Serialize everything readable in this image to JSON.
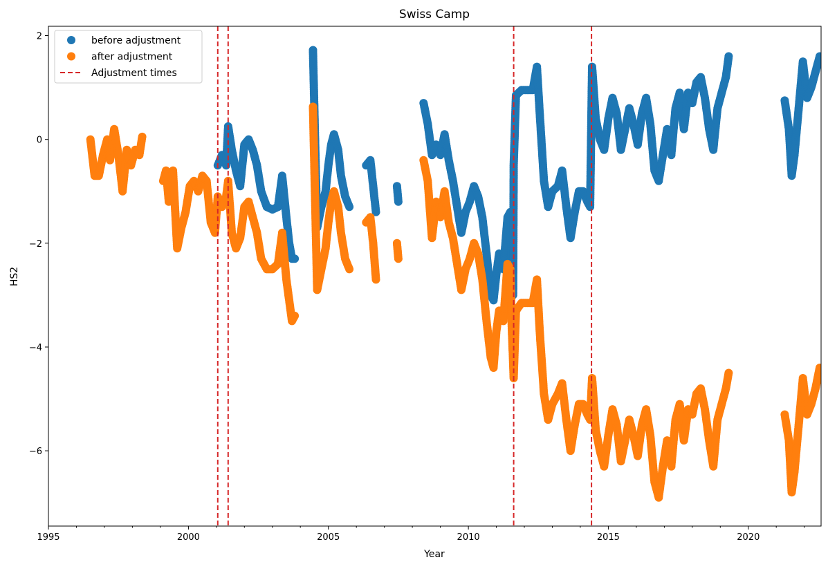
{
  "chart_data": {
    "type": "scatter",
    "title": "Swiss Camp",
    "xlabel": "Year",
    "ylabel": "HS2",
    "xlim": [
      1995.0,
      2022.6
    ],
    "ylim": [
      -7.45,
      2.18
    ],
    "xticks": [
      1995,
      2000,
      2005,
      2010,
      2015,
      2020
    ],
    "xtick_labels": [
      "1995",
      "2000",
      "2005",
      "2010",
      "2015",
      "2020"
    ],
    "yticks": [
      -6,
      -4,
      -2,
      0,
      2
    ],
    "ytick_labels": [
      "−6",
      "−4",
      "−2",
      "0",
      "2"
    ],
    "grid": false,
    "legend_position": "upper left",
    "series": [
      {
        "name": "before adjustment",
        "color": "#1f77b4",
        "points": [
          [
            2001.05,
            -0.5
          ],
          [
            2001.2,
            -0.3
          ],
          [
            2001.35,
            -0.5
          ],
          [
            2001.42,
            0.25
          ],
          [
            2001.55,
            -0.2
          ],
          [
            2001.7,
            -0.6
          ],
          [
            2001.85,
            -0.9
          ],
          [
            2002.0,
            -0.1
          ],
          [
            2002.15,
            0.0
          ],
          [
            2002.3,
            -0.2
          ],
          [
            2002.45,
            -0.5
          ],
          [
            2002.6,
            -1.0
          ],
          [
            2002.8,
            -1.3
          ],
          [
            2003.0,
            -1.35
          ],
          [
            2003.2,
            -1.3
          ],
          [
            2003.35,
            -0.7
          ],
          [
            2003.5,
            -1.5
          ],
          [
            2003.6,
            -2.0
          ],
          [
            2003.7,
            -2.3
          ],
          [
            2003.8,
            -2.3
          ],
          [
            2004.45,
            1.72
          ],
          [
            2004.6,
            -1.7
          ],
          [
            2004.75,
            -1.3
          ],
          [
            2004.9,
            -1.0
          ],
          [
            2005.0,
            -0.5
          ],
          [
            2005.1,
            -0.1
          ],
          [
            2005.2,
            0.1
          ],
          [
            2005.35,
            -0.2
          ],
          [
            2005.45,
            -0.7
          ],
          [
            2005.6,
            -1.1
          ],
          [
            2005.75,
            -1.3
          ],
          [
            2006.35,
            -0.5
          ],
          [
            2006.5,
            -0.4
          ],
          [
            2006.6,
            -0.9
          ],
          [
            2006.7,
            -1.4
          ],
          [
            2007.45,
            -0.9
          ],
          [
            2007.5,
            -1.2
          ],
          [
            2008.4,
            0.7
          ],
          [
            2008.55,
            0.3
          ],
          [
            2008.7,
            -0.3
          ],
          [
            2008.85,
            -0.1
          ],
          [
            2009.0,
            -0.3
          ],
          [
            2009.15,
            0.1
          ],
          [
            2009.3,
            -0.4
          ],
          [
            2009.45,
            -0.8
          ],
          [
            2009.6,
            -1.3
          ],
          [
            2009.75,
            -1.8
          ],
          [
            2009.9,
            -1.4
          ],
          [
            2010.05,
            -1.2
          ],
          [
            2010.2,
            -0.9
          ],
          [
            2010.35,
            -1.1
          ],
          [
            2010.5,
            -1.5
          ],
          [
            2010.65,
            -2.2
          ],
          [
            2010.8,
            -3.0
          ],
          [
            2010.9,
            -3.1
          ],
          [
            2011.0,
            -2.6
          ],
          [
            2011.1,
            -2.2
          ],
          [
            2011.25,
            -2.5
          ],
          [
            2011.4,
            -1.5
          ],
          [
            2011.5,
            -1.4
          ],
          [
            2011.55,
            -2.5
          ],
          [
            2011.6,
            -3.0
          ],
          [
            2011.62,
            -0.5
          ],
          [
            2011.7,
            0.85
          ],
          [
            2011.9,
            0.95
          ],
          [
            2012.1,
            0.95
          ],
          [
            2012.3,
            0.95
          ],
          [
            2012.45,
            1.4
          ],
          [
            2012.55,
            0.5
          ],
          [
            2012.7,
            -0.8
          ],
          [
            2012.85,
            -1.3
          ],
          [
            2013.0,
            -1.0
          ],
          [
            2013.2,
            -0.9
          ],
          [
            2013.35,
            -0.6
          ],
          [
            2013.5,
            -1.3
          ],
          [
            2013.65,
            -1.9
          ],
          [
            2013.8,
            -1.4
          ],
          [
            2013.95,
            -1.0
          ],
          [
            2014.1,
            -1.0
          ],
          [
            2014.25,
            -1.2
          ],
          [
            2014.35,
            -1.3
          ],
          [
            2014.42,
            1.4
          ],
          [
            2014.55,
            0.4
          ],
          [
            2014.7,
            0.0
          ],
          [
            2014.85,
            -0.2
          ],
          [
            2015.0,
            0.4
          ],
          [
            2015.15,
            0.8
          ],
          [
            2015.3,
            0.5
          ],
          [
            2015.45,
            -0.2
          ],
          [
            2015.6,
            0.2
          ],
          [
            2015.75,
            0.6
          ],
          [
            2015.9,
            0.3
          ],
          [
            2016.05,
            -0.1
          ],
          [
            2016.2,
            0.5
          ],
          [
            2016.35,
            0.8
          ],
          [
            2016.5,
            0.3
          ],
          [
            2016.65,
            -0.6
          ],
          [
            2016.8,
            -0.8
          ],
          [
            2016.95,
            -0.3
          ],
          [
            2017.1,
            0.2
          ],
          [
            2017.25,
            -0.3
          ],
          [
            2017.4,
            0.6
          ],
          [
            2017.55,
            0.9
          ],
          [
            2017.7,
            0.2
          ],
          [
            2017.85,
            0.9
          ],
          [
            2018.0,
            0.7
          ],
          [
            2018.15,
            1.1
          ],
          [
            2018.3,
            1.2
          ],
          [
            2018.45,
            0.8
          ],
          [
            2018.6,
            0.2
          ],
          [
            2018.75,
            -0.2
          ],
          [
            2018.9,
            0.6
          ],
          [
            2019.05,
            0.9
          ],
          [
            2019.2,
            1.2
          ],
          [
            2019.3,
            1.6
          ],
          [
            2021.3,
            0.75
          ],
          [
            2021.45,
            0.2
          ],
          [
            2021.55,
            -0.7
          ],
          [
            2021.65,
            -0.3
          ],
          [
            2021.8,
            0.6
          ],
          [
            2021.95,
            1.5
          ],
          [
            2022.1,
            0.8
          ],
          [
            2022.25,
            1.0
          ],
          [
            2022.4,
            1.3
          ],
          [
            2022.55,
            1.6
          ]
        ]
      },
      {
        "name": "after adjustment",
        "color": "#ff7f0e",
        "points": [
          [
            1996.5,
            0.0
          ],
          [
            1996.65,
            -0.7
          ],
          [
            1996.8,
            -0.7
          ],
          [
            1996.95,
            -0.3
          ],
          [
            1997.1,
            0.0
          ],
          [
            1997.2,
            -0.4
          ],
          [
            1997.35,
            0.2
          ],
          [
            1997.5,
            -0.3
          ],
          [
            1997.65,
            -1.0
          ],
          [
            1997.8,
            -0.2
          ],
          [
            1997.95,
            -0.5
          ],
          [
            1998.1,
            -0.2
          ],
          [
            1998.25,
            -0.3
          ],
          [
            1998.35,
            0.05
          ],
          [
            1999.1,
            -0.8
          ],
          [
            1999.2,
            -0.6
          ],
          [
            1999.3,
            -1.2
          ],
          [
            1999.45,
            -0.6
          ],
          [
            1999.6,
            -2.1
          ],
          [
            1999.75,
            -1.7
          ],
          [
            1999.9,
            -1.4
          ],
          [
            2000.05,
            -0.9
          ],
          [
            2000.2,
            -0.8
          ],
          [
            2000.35,
            -1.0
          ],
          [
            2000.5,
            -0.7
          ],
          [
            2000.65,
            -0.8
          ],
          [
            2000.8,
            -1.6
          ],
          [
            2000.95,
            -1.8
          ],
          [
            2001.05,
            -1.1
          ],
          [
            2001.2,
            -1.3
          ],
          [
            2001.35,
            -1.1
          ],
          [
            2001.42,
            -0.8
          ],
          [
            2001.55,
            -1.8
          ],
          [
            2001.7,
            -2.1
          ],
          [
            2001.85,
            -1.9
          ],
          [
            2002.0,
            -1.3
          ],
          [
            2002.15,
            -1.2
          ],
          [
            2002.3,
            -1.5
          ],
          [
            2002.45,
            -1.8
          ],
          [
            2002.6,
            -2.3
          ],
          [
            2002.8,
            -2.5
          ],
          [
            2003.0,
            -2.5
          ],
          [
            2003.2,
            -2.4
          ],
          [
            2003.35,
            -1.8
          ],
          [
            2003.5,
            -2.7
          ],
          [
            2003.6,
            -3.1
          ],
          [
            2003.7,
            -3.5
          ],
          [
            2003.8,
            -3.4
          ],
          [
            2004.45,
            0.63
          ],
          [
            2004.6,
            -2.9
          ],
          [
            2004.75,
            -2.5
          ],
          [
            2004.9,
            -2.1
          ],
          [
            2005.0,
            -1.6
          ],
          [
            2005.1,
            -1.2
          ],
          [
            2005.2,
            -1.0
          ],
          [
            2005.35,
            -1.3
          ],
          [
            2005.45,
            -1.8
          ],
          [
            2005.6,
            -2.3
          ],
          [
            2005.75,
            -2.5
          ],
          [
            2006.35,
            -1.6
          ],
          [
            2006.5,
            -1.5
          ],
          [
            2006.6,
            -2.0
          ],
          [
            2006.7,
            -2.7
          ],
          [
            2007.45,
            -2.0
          ],
          [
            2007.5,
            -2.3
          ],
          [
            2008.4,
            -0.4
          ],
          [
            2008.55,
            -0.8
          ],
          [
            2008.7,
            -1.9
          ],
          [
            2008.85,
            -1.2
          ],
          [
            2009.0,
            -1.5
          ],
          [
            2009.15,
            -1.0
          ],
          [
            2009.3,
            -1.6
          ],
          [
            2009.45,
            -1.9
          ],
          [
            2009.6,
            -2.4
          ],
          [
            2009.75,
            -2.9
          ],
          [
            2009.9,
            -2.5
          ],
          [
            2010.05,
            -2.3
          ],
          [
            2010.2,
            -2.0
          ],
          [
            2010.35,
            -2.2
          ],
          [
            2010.5,
            -2.7
          ],
          [
            2010.65,
            -3.5
          ],
          [
            2010.8,
            -4.2
          ],
          [
            2010.9,
            -4.4
          ],
          [
            2011.0,
            -3.7
          ],
          [
            2011.1,
            -3.3
          ],
          [
            2011.25,
            -3.5
          ],
          [
            2011.4,
            -2.4
          ],
          [
            2011.5,
            -2.5
          ],
          [
            2011.55,
            -3.6
          ],
          [
            2011.6,
            -4.3
          ],
          [
            2011.62,
            -4.6
          ],
          [
            2011.7,
            -3.3
          ],
          [
            2011.9,
            -3.15
          ],
          [
            2012.1,
            -3.15
          ],
          [
            2012.3,
            -3.15
          ],
          [
            2012.45,
            -2.7
          ],
          [
            2012.55,
            -3.7
          ],
          [
            2012.7,
            -4.9
          ],
          [
            2012.85,
            -5.4
          ],
          [
            2013.0,
            -5.1
          ],
          [
            2013.2,
            -4.9
          ],
          [
            2013.35,
            -4.7
          ],
          [
            2013.5,
            -5.4
          ],
          [
            2013.65,
            -6.0
          ],
          [
            2013.8,
            -5.5
          ],
          [
            2013.95,
            -5.1
          ],
          [
            2014.1,
            -5.1
          ],
          [
            2014.25,
            -5.3
          ],
          [
            2014.35,
            -5.4
          ],
          [
            2014.42,
            -4.6
          ],
          [
            2014.55,
            -5.6
          ],
          [
            2014.7,
            -6.0
          ],
          [
            2014.85,
            -6.3
          ],
          [
            2015.0,
            -5.7
          ],
          [
            2015.15,
            -5.2
          ],
          [
            2015.3,
            -5.5
          ],
          [
            2015.45,
            -6.2
          ],
          [
            2015.6,
            -5.8
          ],
          [
            2015.75,
            -5.4
          ],
          [
            2015.9,
            -5.7
          ],
          [
            2016.05,
            -6.1
          ],
          [
            2016.2,
            -5.5
          ],
          [
            2016.35,
            -5.2
          ],
          [
            2016.5,
            -5.7
          ],
          [
            2016.65,
            -6.6
          ],
          [
            2016.8,
            -6.9
          ],
          [
            2016.95,
            -6.3
          ],
          [
            2017.1,
            -5.8
          ],
          [
            2017.25,
            -6.3
          ],
          [
            2017.4,
            -5.4
          ],
          [
            2017.55,
            -5.1
          ],
          [
            2017.7,
            -5.8
          ],
          [
            2017.85,
            -5.2
          ],
          [
            2018.0,
            -5.3
          ],
          [
            2018.15,
            -4.9
          ],
          [
            2018.3,
            -4.8
          ],
          [
            2018.45,
            -5.2
          ],
          [
            2018.6,
            -5.8
          ],
          [
            2018.75,
            -6.3
          ],
          [
            2018.9,
            -5.4
          ],
          [
            2019.05,
            -5.1
          ],
          [
            2019.2,
            -4.8
          ],
          [
            2019.3,
            -4.5
          ],
          [
            2021.3,
            -5.3
          ],
          [
            2021.45,
            -5.8
          ],
          [
            2021.55,
            -6.8
          ],
          [
            2021.65,
            -6.4
          ],
          [
            2021.8,
            -5.5
          ],
          [
            2021.95,
            -4.6
          ],
          [
            2022.1,
            -5.3
          ],
          [
            2022.25,
            -5.1
          ],
          [
            2022.4,
            -4.8
          ],
          [
            2022.55,
            -4.4
          ]
        ]
      }
    ],
    "vlines": {
      "name": "Adjustment times",
      "color": "#d62728",
      "style": "dashed",
      "x": [
        2001.05,
        2001.42,
        2011.62,
        2014.4
      ]
    },
    "legend": [
      {
        "label": "before adjustment",
        "kind": "marker",
        "color": "#1f77b4"
      },
      {
        "label": "after adjustment",
        "kind": "marker",
        "color": "#ff7f0e"
      },
      {
        "label": "Adjustment times",
        "kind": "dashed-line",
        "color": "#d62728"
      }
    ]
  }
}
